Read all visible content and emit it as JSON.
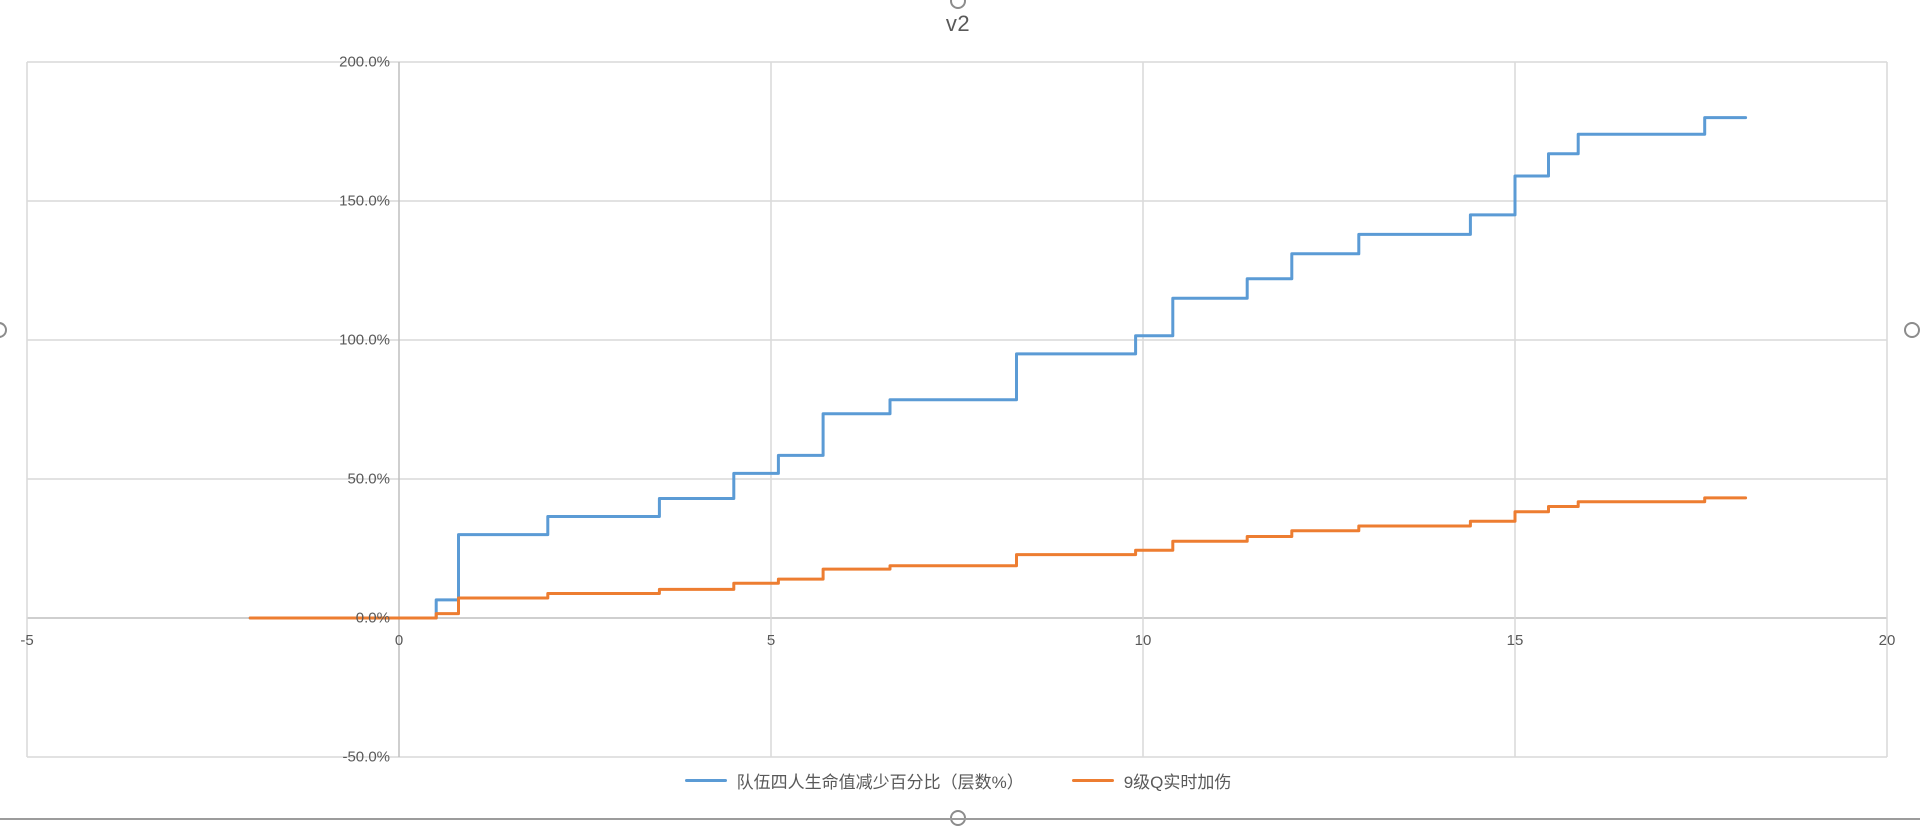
{
  "chart": {
    "title": "v2"
  },
  "colors": {
    "gridline": "#d9d9d9",
    "axis_line": "#bfbfbf",
    "tick_text": "#595959",
    "series_blue": "#5B9BD5",
    "series_orange": "#ED7D31",
    "handle_border": "#8c8c8c"
  },
  "axes": {
    "x": {
      "min": -5,
      "max": 20,
      "ticks": [
        {
          "value": -5,
          "label": "-5"
        },
        {
          "value": 0,
          "label": "0"
        },
        {
          "value": 5,
          "label": "5"
        },
        {
          "value": 10,
          "label": "10"
        },
        {
          "value": 15,
          "label": "15"
        },
        {
          "value": 20,
          "label": "20"
        }
      ]
    },
    "y": {
      "min": -50,
      "max": 200,
      "ticks": [
        {
          "value": -50,
          "label": "-50.0%"
        },
        {
          "value": 0,
          "label": "0.0%"
        },
        {
          "value": 50,
          "label": "50.0%"
        },
        {
          "value": 100,
          "label": "100.0%"
        },
        {
          "value": 150,
          "label": "150.0%"
        },
        {
          "value": 200,
          "label": "200.0%"
        }
      ]
    }
  },
  "legend": {
    "items": [
      {
        "label": "队伍四人生命值减少百分比（层数%）",
        "color": "#5B9BD5"
      },
      {
        "label": "9级Q实时加伤",
        "color": "#ED7D31"
      }
    ]
  },
  "handles": [
    {
      "position": "top-center"
    },
    {
      "position": "left-middle"
    },
    {
      "position": "right-middle"
    },
    {
      "position": "bottom-center"
    }
  ],
  "chart_data": {
    "type": "line",
    "line_style": "step-after",
    "title": "v2",
    "xlabel": "",
    "ylabel": "",
    "xlim": [
      -5,
      20
    ],
    "ylim_percent": [
      -50,
      200
    ],
    "grid": true,
    "legend_position": "bottom",
    "series": [
      {
        "name": "队伍四人生命值减少百分比（层数%）",
        "color": "#5B9BD5",
        "points": [
          [
            -2.0,
            0
          ],
          [
            0.5,
            6.5
          ],
          [
            0.8,
            30
          ],
          [
            2.0,
            36.5
          ],
          [
            3.5,
            43
          ],
          [
            4.5,
            52
          ],
          [
            5.1,
            58.5
          ],
          [
            5.7,
            73.5
          ],
          [
            6.6,
            78.5
          ],
          [
            8.3,
            95
          ],
          [
            9.9,
            101.5
          ],
          [
            10.4,
            115
          ],
          [
            11.4,
            122
          ],
          [
            12.0,
            131
          ],
          [
            12.9,
            138
          ],
          [
            14.4,
            145
          ],
          [
            15.0,
            159
          ],
          [
            15.45,
            167
          ],
          [
            15.85,
            174
          ],
          [
            17.55,
            180
          ],
          [
            18.1,
            180
          ]
        ]
      },
      {
        "name": "9级Q实时加伤",
        "color": "#ED7D31",
        "points": [
          [
            -2.0,
            0
          ],
          [
            0.5,
            1.6
          ],
          [
            0.8,
            7.2
          ],
          [
            2.0,
            8.8
          ],
          [
            3.5,
            10.3
          ],
          [
            4.5,
            12.5
          ],
          [
            5.1,
            14.0
          ],
          [
            5.7,
            17.6
          ],
          [
            6.6,
            18.8
          ],
          [
            8.3,
            22.8
          ],
          [
            9.9,
            24.4
          ],
          [
            10.4,
            27.6
          ],
          [
            11.4,
            29.3
          ],
          [
            12.0,
            31.4
          ],
          [
            12.9,
            33.1
          ],
          [
            14.4,
            34.8
          ],
          [
            15.0,
            38.2
          ],
          [
            15.45,
            40.1
          ],
          [
            15.85,
            41.8
          ],
          [
            17.55,
            43.2
          ],
          [
            18.1,
            43.2
          ]
        ]
      }
    ]
  }
}
